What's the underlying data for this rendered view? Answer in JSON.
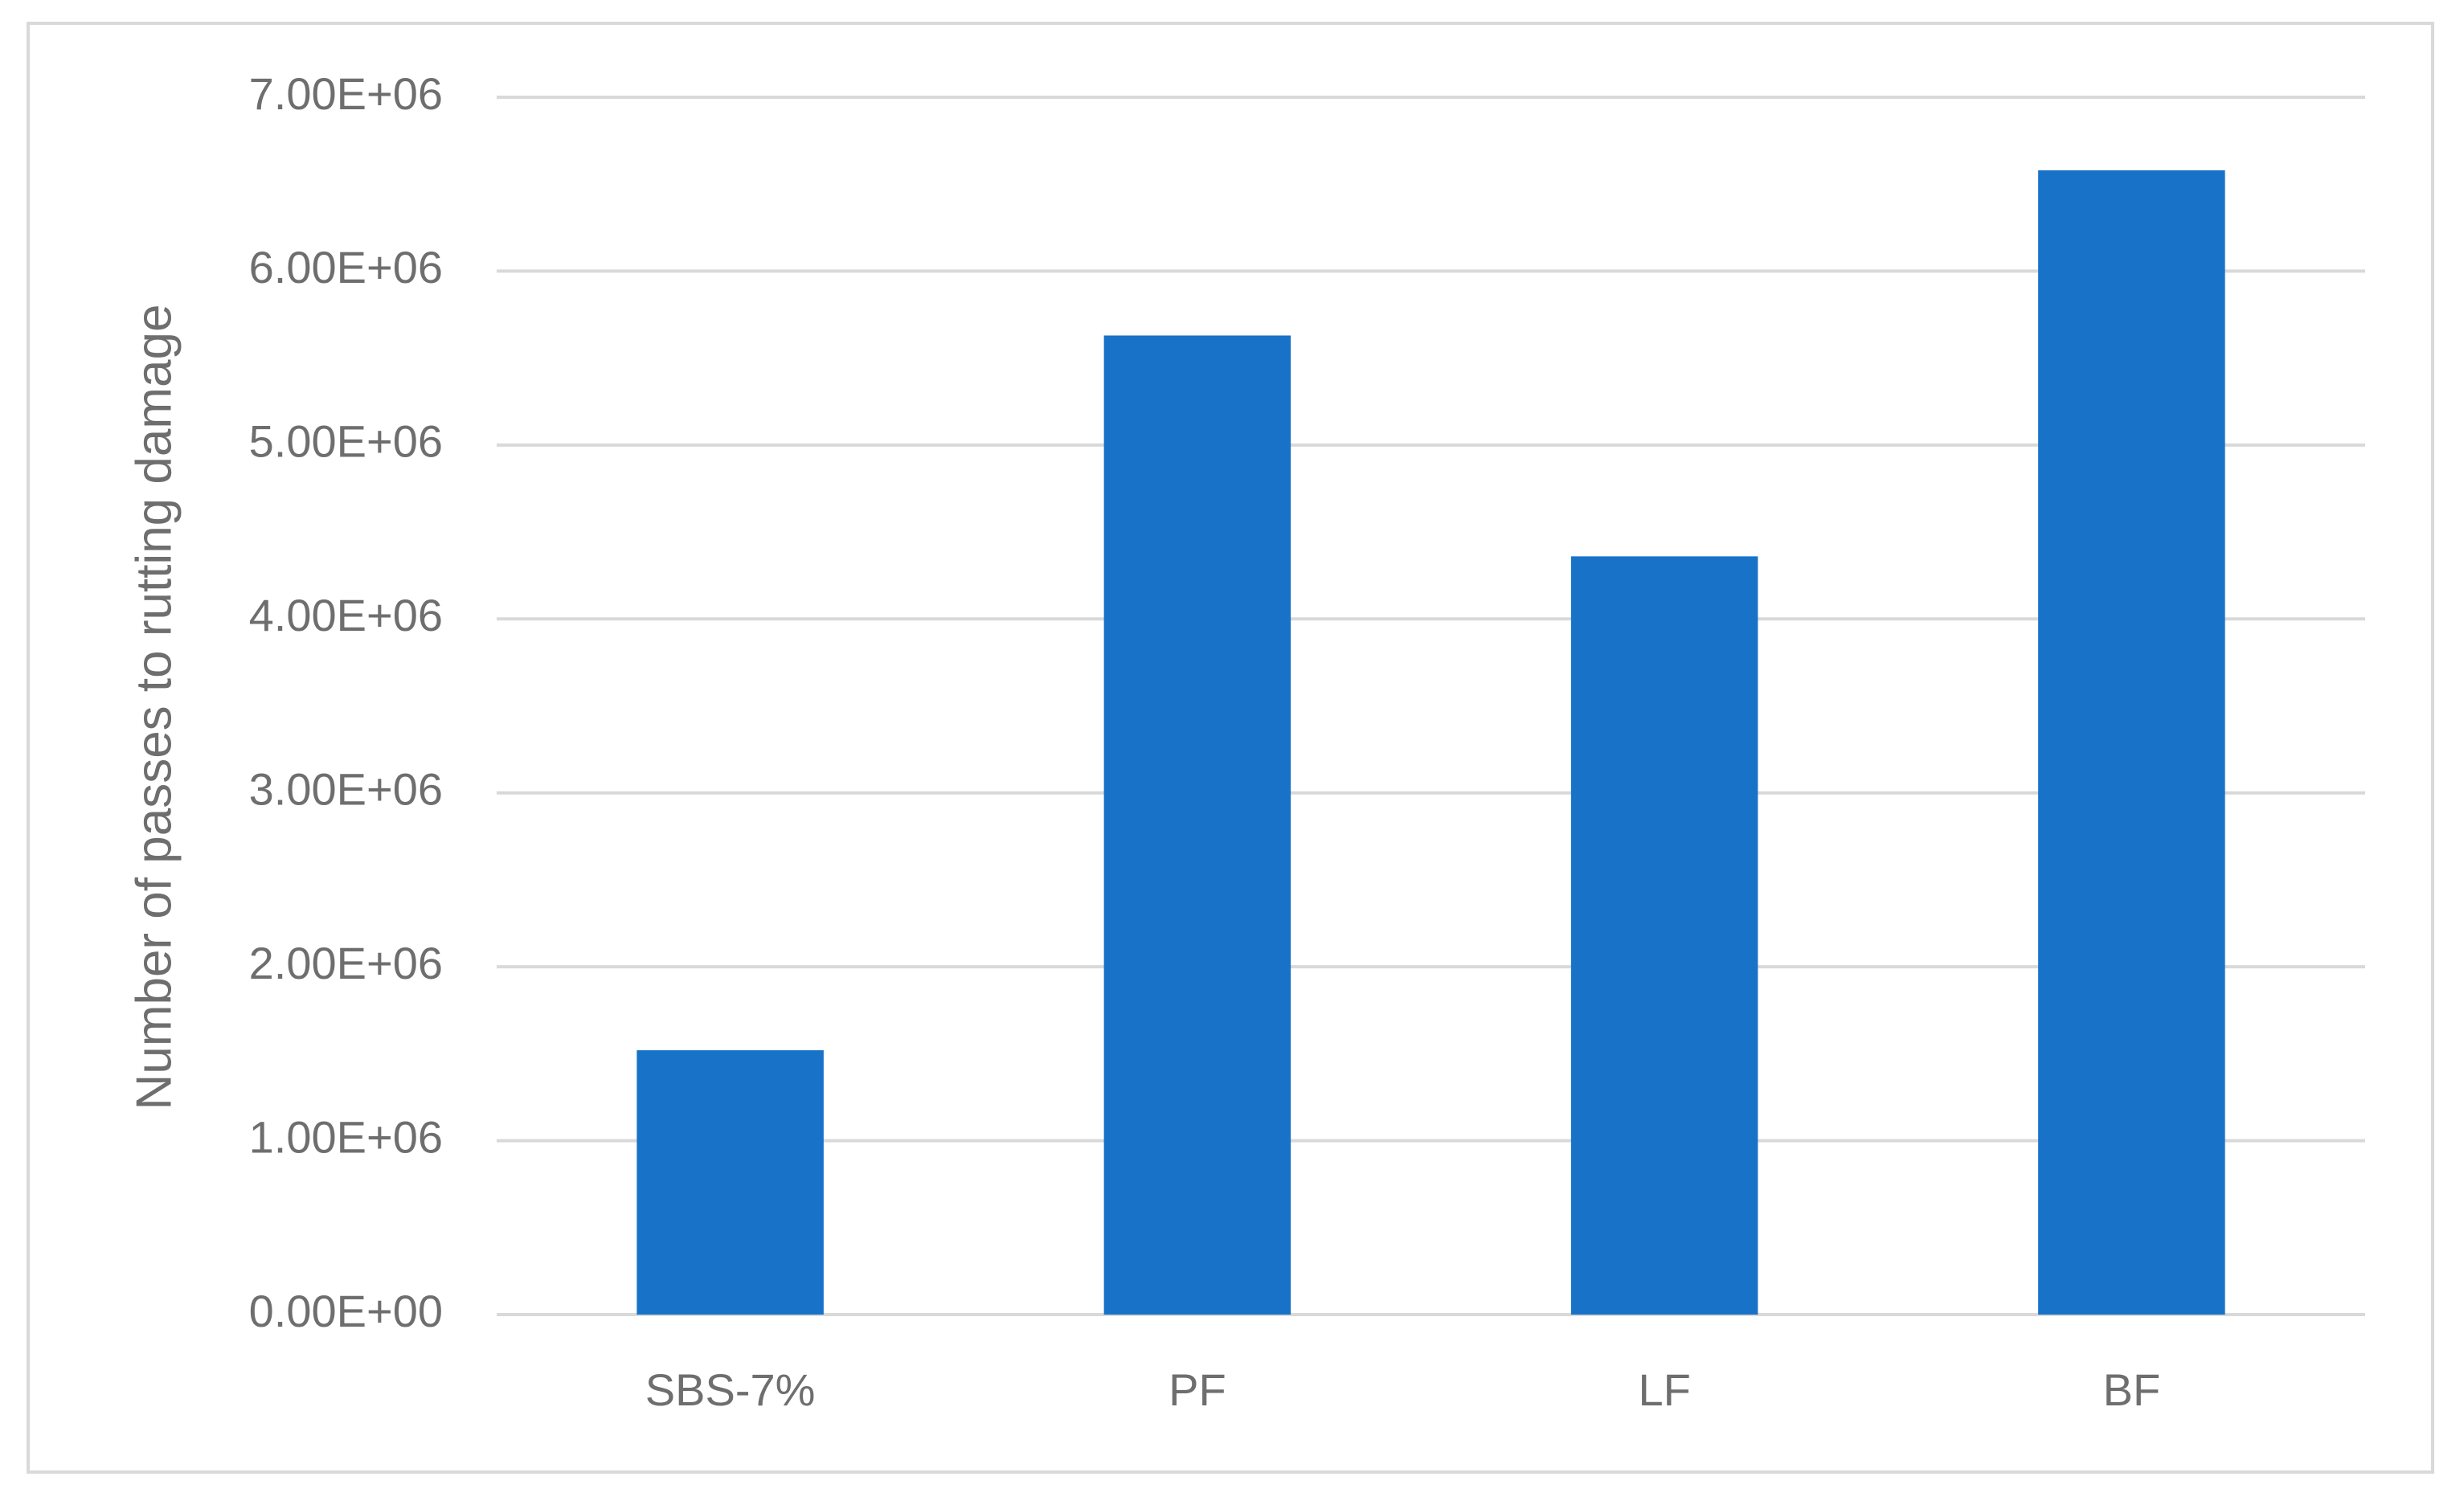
{
  "chart_data": {
    "type": "bar",
    "y_label": "Number of passes to rutting damage",
    "categories": [
      "SBS-7%",
      "PF",
      "LF",
      "BF"
    ],
    "values": [
      1520000,
      5630000,
      4360000,
      6580000
    ],
    "color": "#1872c8",
    "ylim": [
      0,
      7000000
    ],
    "yticks": [
      {
        "value": 0,
        "label": "0.00E+00"
      },
      {
        "value": 1000000,
        "label": "1.00E+06"
      },
      {
        "value": 2000000,
        "label": "2.00E+06"
      },
      {
        "value": 3000000,
        "label": "3.00E+06"
      },
      {
        "value": 4000000,
        "label": "4.00E+06"
      },
      {
        "value": 5000000,
        "label": "5.00E+06"
      },
      {
        "value": 6000000,
        "label": "6.00E+06"
      },
      {
        "value": 7000000,
        "label": "7.00E+06"
      }
    ],
    "grid": true
  }
}
